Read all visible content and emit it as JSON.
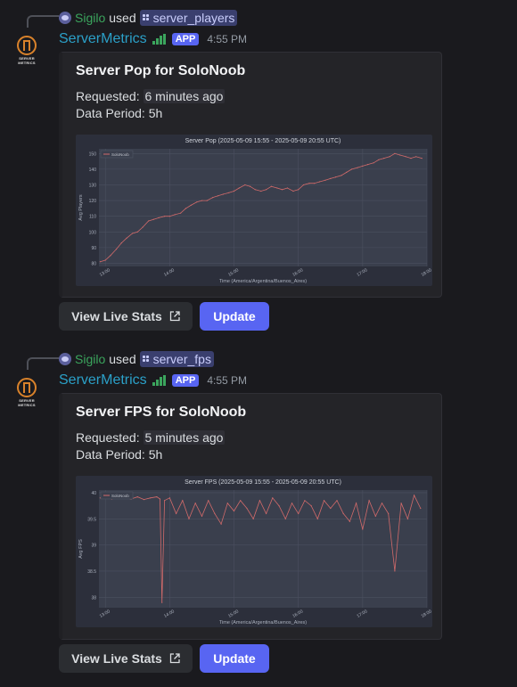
{
  "messages": [
    {
      "reply": {
        "user": "Sigilo",
        "used": "used",
        "command": "server_players"
      },
      "author": {
        "name": "ServerMetrics",
        "badge": "APP",
        "time": "4:55 PM",
        "avatar_text1": "SERVER",
        "avatar_text2": "METRICS"
      },
      "embed": {
        "title": "Server Pop for SoloNoob",
        "requested_label": "Requested:",
        "requested_value": "6 minutes ago",
        "period_label": "Data Period:",
        "period_value": "5h"
      },
      "buttons": {
        "live": "View Live Stats",
        "update": "Update"
      }
    },
    {
      "reply": {
        "user": "Sigilo",
        "used": "used",
        "command": "server_fps"
      },
      "author": {
        "name": "ServerMetrics",
        "badge": "APP",
        "time": "4:55 PM",
        "avatar_text1": "SERVER",
        "avatar_text2": "METRICS"
      },
      "embed": {
        "title": "Server FPS for SoloNoob",
        "requested_label": "Requested:",
        "requested_value": "5 minutes ago",
        "period_label": "Data Period:",
        "period_value": "5h"
      },
      "buttons": {
        "live": "View Live Stats",
        "update": "Update"
      }
    }
  ],
  "colors": {
    "accent": "#5865f2",
    "bot_name": "#2ba0c8",
    "user_name": "#3ba55d",
    "series": "#d16a6a"
  },
  "chart_data": [
    {
      "type": "line",
      "title": "Server Pop (2025-05-09 15:55 - 2025-05-09 20:55 UTC)",
      "xlabel": "Time (America/Argentina/Buenos_Aires)",
      "ylabel": "Avg Players",
      "xticks": [
        "13:00",
        "14:00",
        "15:00",
        "16:00",
        "17:00",
        "18:00"
      ],
      "yticks": [
        80,
        90,
        100,
        110,
        120,
        130,
        140,
        150
      ],
      "ylim": [
        78,
        153
      ],
      "xlim": [
        12.9,
        18.0
      ],
      "grid": true,
      "legend": "top-left",
      "series": [
        {
          "name": "SoloNoob",
          "x": [
            12.92,
            13.0,
            13.08,
            13.17,
            13.25,
            13.33,
            13.42,
            13.5,
            13.58,
            13.67,
            13.75,
            13.83,
            13.92,
            14.0,
            14.08,
            14.17,
            14.25,
            14.33,
            14.42,
            14.5,
            14.58,
            14.67,
            14.75,
            14.83,
            14.92,
            15.0,
            15.08,
            15.17,
            15.25,
            15.33,
            15.42,
            15.5,
            15.58,
            15.67,
            15.75,
            15.83,
            15.92,
            16.0,
            16.08,
            16.17,
            16.25,
            16.33,
            16.42,
            16.5,
            16.58,
            16.67,
            16.75,
            16.83,
            16.92,
            17.0,
            17.08,
            17.17,
            17.25,
            17.33,
            17.42,
            17.5,
            17.58,
            17.67,
            17.75,
            17.83,
            17.92
          ],
          "values": [
            81,
            82,
            85,
            89,
            93,
            96,
            99,
            100,
            103,
            107,
            108,
            109,
            110,
            110,
            111,
            112,
            115,
            117,
            119,
            120,
            120,
            122,
            123,
            124,
            125,
            126,
            128,
            130,
            129,
            127,
            126,
            127,
            129,
            128,
            127,
            128,
            126,
            127,
            130,
            131,
            131,
            132,
            133,
            134,
            135,
            136,
            138,
            140,
            141,
            142,
            143,
            144,
            146,
            147,
            148,
            150,
            149,
            148,
            147,
            148,
            147
          ]
        }
      ]
    },
    {
      "type": "line",
      "title": "Server FPS (2025-05-09 15:55 - 2025-05-09 20:55 UTC)",
      "xlabel": "Time (America/Argentina/Buenos_Aires)",
      "ylabel": "Avg FPS",
      "xticks": [
        "13:00",
        "14:00",
        "15:00",
        "16:00",
        "17:00",
        "18:00"
      ],
      "yticks": [
        38.0,
        38.5,
        39.0,
        39.5,
        40.0
      ],
      "ylim": [
        37.8,
        40.05
      ],
      "xlim": [
        12.9,
        18.0
      ],
      "grid": true,
      "legend": "top-left",
      "series": [
        {
          "name": "SoloNoob",
          "x": [
            12.92,
            13.0,
            13.1,
            13.2,
            13.3,
            13.4,
            13.5,
            13.6,
            13.7,
            13.8,
            13.85,
            13.88,
            13.92,
            14.0,
            14.1,
            14.2,
            14.3,
            14.4,
            14.5,
            14.6,
            14.7,
            14.8,
            14.9,
            15.0,
            15.1,
            15.2,
            15.3,
            15.4,
            15.5,
            15.6,
            15.7,
            15.8,
            15.9,
            16.0,
            16.1,
            16.2,
            16.3,
            16.4,
            16.5,
            16.6,
            16.7,
            16.8,
            16.9,
            17.0,
            17.1,
            17.2,
            17.3,
            17.4,
            17.5,
            17.6,
            17.7,
            17.8,
            17.9
          ],
          "values": [
            39.9,
            39.92,
            39.88,
            39.93,
            39.9,
            39.88,
            39.92,
            39.87,
            39.9,
            39.92,
            39.88,
            37.9,
            39.85,
            39.9,
            39.6,
            39.85,
            39.5,
            39.8,
            39.55,
            39.85,
            39.6,
            39.4,
            39.8,
            39.65,
            39.85,
            39.7,
            39.5,
            39.85,
            39.6,
            39.9,
            39.75,
            39.5,
            39.8,
            39.6,
            39.85,
            39.75,
            39.5,
            39.85,
            39.7,
            39.85,
            39.6,
            39.45,
            39.8,
            39.3,
            39.85,
            39.55,
            39.8,
            39.6,
            38.5,
            39.8,
            39.5,
            39.95,
            39.7
          ]
        }
      ]
    }
  ]
}
